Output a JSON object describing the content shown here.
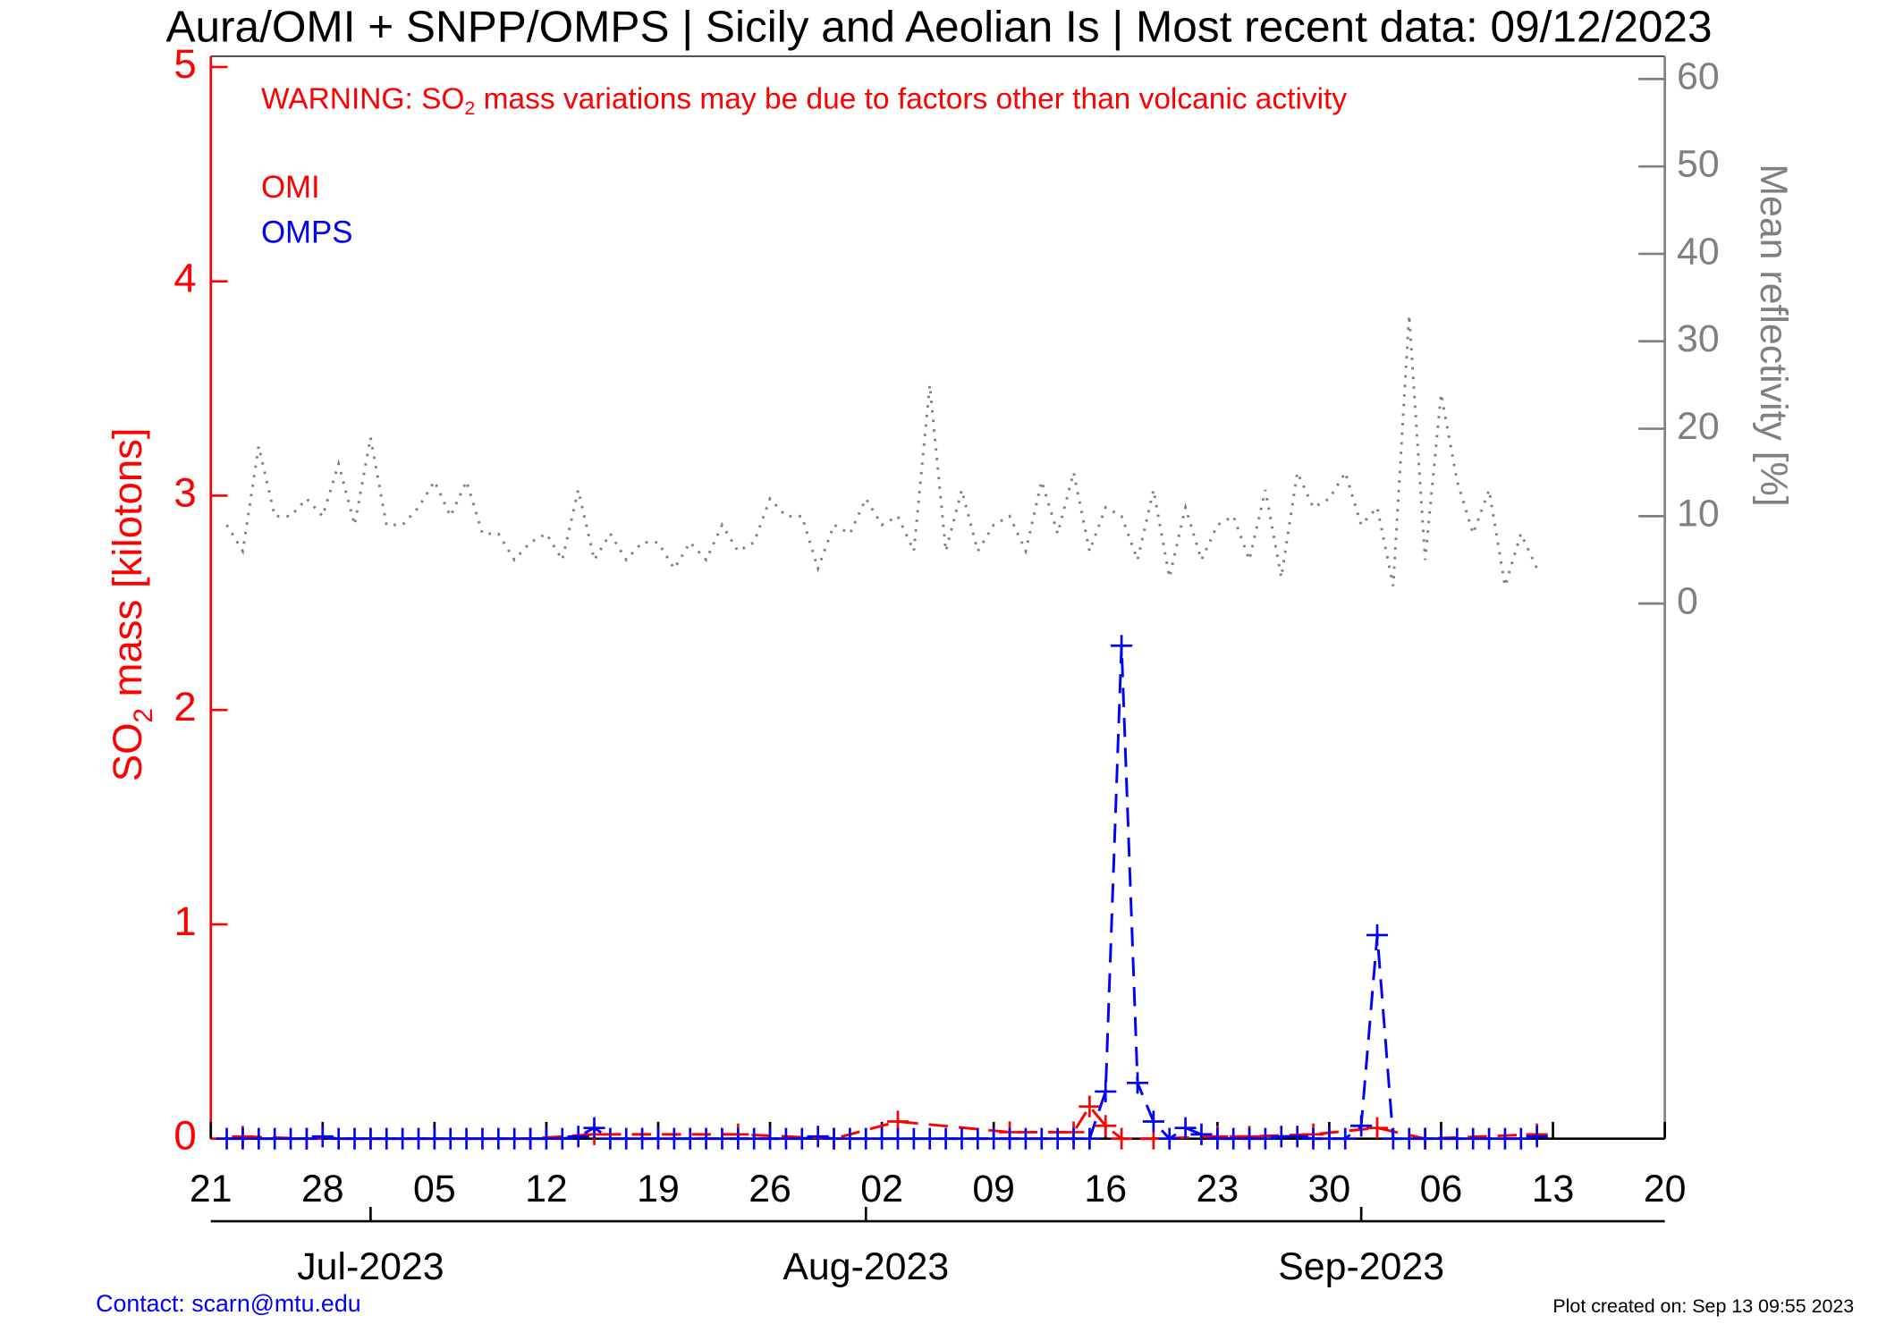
{
  "chart_data": {
    "type": "line",
    "title": "Aura/OMI + SNPP/OMPS | Sicily and Aeolian Is | Most recent data: 09/12/2023",
    "warning": [
      "WARNING: SO",
      "2",
      " mass variations may be due to factors other than volcanic activity"
    ],
    "ylabel": [
      "SO",
      "2",
      " mass [kilotons]"
    ],
    "y2label": "Mean reflectivity [%]",
    "footer_left": "Contact: scarn@mtu.edu",
    "footer_right": "Plot created on: Sep 13 09:55 2023",
    "xlim": [
      "2023-06-21",
      "2023-09-20"
    ],
    "xticks": [
      {
        "value": "2023-06-21",
        "label": "21"
      },
      {
        "value": "2023-06-28",
        "label": "28"
      },
      {
        "value": "2023-07-05",
        "label": "05"
      },
      {
        "value": "2023-07-12",
        "label": "12"
      },
      {
        "value": "2023-07-19",
        "label": "19"
      },
      {
        "value": "2023-07-26",
        "label": "26"
      },
      {
        "value": "2023-08-02",
        "label": "02"
      },
      {
        "value": "2023-08-09",
        "label": "09"
      },
      {
        "value": "2023-08-16",
        "label": "16"
      },
      {
        "value": "2023-08-23",
        "label": "23"
      },
      {
        "value": "2023-08-30",
        "label": "30"
      },
      {
        "value": "2023-09-06",
        "label": "06"
      },
      {
        "value": "2023-09-13",
        "label": "13"
      },
      {
        "value": "2023-09-20",
        "label": "20"
      }
    ],
    "month_ticks": [
      {
        "value": "2023-07-01",
        "label": "Jul-2023"
      },
      {
        "value": "2023-08-01",
        "label": "Aug-2023"
      },
      {
        "value": "2023-09-01",
        "label": "Sep-2023"
      }
    ],
    "ylim": [
      0,
      5.05
    ],
    "yticks": [
      0,
      1,
      2,
      3,
      4,
      5
    ],
    "y2lim": [
      -61.2,
      62.6
    ],
    "y2ticks": [
      0,
      10,
      20,
      30,
      40,
      50,
      60
    ],
    "x": [
      "2023-06-22",
      "2023-06-23",
      "2023-06-24",
      "2023-06-25",
      "2023-06-26",
      "2023-06-27",
      "2023-06-28",
      "2023-06-29",
      "2023-06-30",
      "2023-07-01",
      "2023-07-02",
      "2023-07-03",
      "2023-07-04",
      "2023-07-05",
      "2023-07-06",
      "2023-07-07",
      "2023-07-08",
      "2023-07-09",
      "2023-07-10",
      "2023-07-11",
      "2023-07-12",
      "2023-07-13",
      "2023-07-14",
      "2023-07-15",
      "2023-07-16",
      "2023-07-17",
      "2023-07-18",
      "2023-07-19",
      "2023-07-20",
      "2023-07-21",
      "2023-07-22",
      "2023-07-23",
      "2023-07-24",
      "2023-07-25",
      "2023-07-26",
      "2023-07-27",
      "2023-07-28",
      "2023-07-29",
      "2023-07-30",
      "2023-07-31",
      "2023-08-01",
      "2023-08-02",
      "2023-08-03",
      "2023-08-04",
      "2023-08-05",
      "2023-08-06",
      "2023-08-07",
      "2023-08-08",
      "2023-08-09",
      "2023-08-10",
      "2023-08-11",
      "2023-08-12",
      "2023-08-13",
      "2023-08-14",
      "2023-08-15",
      "2023-08-16",
      "2023-08-17",
      "2023-08-18",
      "2023-08-19",
      "2023-08-20",
      "2023-08-21",
      "2023-08-22",
      "2023-08-23",
      "2023-08-24",
      "2023-08-25",
      "2023-08-26",
      "2023-08-27",
      "2023-08-28",
      "2023-08-29",
      "2023-08-30",
      "2023-08-31",
      "2023-09-01",
      "2023-09-02",
      "2023-09-03",
      "2023-09-04",
      "2023-09-05",
      "2023-09-06",
      "2023-09-07",
      "2023-09-08",
      "2023-09-09",
      "2023-09-10",
      "2023-09-11",
      "2023-09-12"
    ],
    "series": [
      {
        "name": "OMI",
        "color": "#ff0000",
        "marker": "plus",
        "dash": true,
        "x": [
          "2023-06-23",
          "2023-06-27",
          "2023-07-01",
          "2023-07-11",
          "2023-07-15",
          "2023-07-24",
          "2023-07-30",
          "2023-08-03",
          "2023-08-10",
          "2023-08-14",
          "2023-08-15",
          "2023-08-16",
          "2023-08-17",
          "2023-08-19",
          "2023-08-23",
          "2023-08-25",
          "2023-08-29",
          "2023-09-02",
          "2023-09-05",
          "2023-09-12"
        ],
        "values": [
          0.01,
          0,
          0,
          0,
          0.02,
          0.02,
          0,
          0.08,
          0.03,
          0.03,
          0.15,
          0.06,
          0,
          0,
          0.01,
          0.01,
          0.02,
          0.05,
          0,
          0.02
        ]
      },
      {
        "name": "OMPS",
        "color": "#0000ff",
        "marker": "plus",
        "dash": true,
        "values": [
          0,
          0,
          0,
          0,
          0,
          0,
          0.01,
          0,
          0,
          0,
          0,
          0,
          0,
          0,
          0,
          0,
          0,
          0,
          0,
          0,
          0,
          0,
          0.01,
          0.05,
          0,
          0,
          0,
          0,
          0,
          0,
          0,
          0,
          0,
          0,
          0,
          0,
          0,
          0.01,
          0,
          0,
          0,
          0,
          0,
          0,
          0,
          0,
          0,
          0,
          0,
          0,
          0,
          0,
          0,
          0,
          0,
          0.22,
          2.3,
          0.26,
          0.08,
          0,
          0.05,
          0.02,
          0,
          0,
          0,
          0,
          0.01,
          0.01,
          0,
          0,
          0,
          0.06,
          0.95,
          0,
          0,
          0,
          0,
          0,
          0,
          0,
          0,
          0,
          0.01
        ]
      },
      {
        "axis": "y2",
        "color": "#808080",
        "marker": "none",
        "dash": false,
        "values": [
          9,
          6,
          18,
          10,
          10,
          12,
          10,
          16,
          9,
          19,
          9,
          9,
          11,
          14,
          10,
          14,
          8,
          8,
          5,
          7,
          8,
          5,
          13,
          5,
          8,
          5,
          7,
          7,
          4,
          7,
          5,
          9,
          6,
          7,
          12,
          10,
          10,
          4,
          9,
          8,
          12,
          9,
          10,
          6,
          25,
          6,
          13,
          6,
          9,
          10,
          6,
          14,
          8,
          15,
          6,
          11,
          10,
          5,
          13,
          3,
          11,
          5,
          9,
          10,
          5,
          13,
          3,
          15,
          11,
          12,
          15,
          9,
          11,
          2,
          33,
          5,
          24,
          14,
          8,
          13,
          2,
          8,
          4
        ]
      }
    ]
  }
}
